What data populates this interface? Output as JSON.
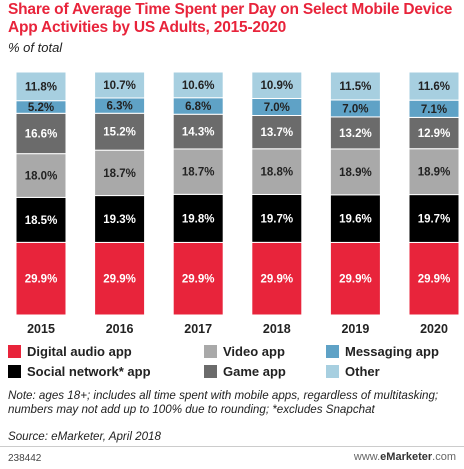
{
  "title": "Share of Average Time Spent per Day on Select Mobile Device App Activities by US Adults, 2015-2020",
  "subtitle": "% of total",
  "chart_data": {
    "type": "bar",
    "stacked": true,
    "categories": [
      "2015",
      "2016",
      "2017",
      "2018",
      "2019",
      "2020"
    ],
    "series": [
      {
        "name": "Digital audio app",
        "color": "#e8243b",
        "values": [
          29.9,
          29.9,
          29.9,
          29.9,
          29.9,
          29.9
        ]
      },
      {
        "name": "Social network* app",
        "color": "#000000",
        "values": [
          18.5,
          19.3,
          19.8,
          19.7,
          19.6,
          19.7
        ]
      },
      {
        "name": "Video app",
        "color": "#a9a9a9",
        "values": [
          18.0,
          18.7,
          18.7,
          18.8,
          18.9,
          18.9
        ]
      },
      {
        "name": "Game app",
        "color": "#6b6b6b",
        "values": [
          16.6,
          15.2,
          14.3,
          13.7,
          13.2,
          12.9
        ]
      },
      {
        "name": "Messaging app",
        "color": "#5fa2c6",
        "values": [
          5.2,
          6.3,
          6.8,
          7.0,
          7.0,
          7.1
        ]
      },
      {
        "name": "Other",
        "color": "#a7cfe0",
        "values": [
          11.8,
          10.7,
          10.6,
          10.9,
          11.5,
          11.6
        ]
      }
    ],
    "legend_placement": "bottom",
    "grid": false
  },
  "legend_items": [
    {
      "label": "Digital audio app",
      "color": "#e8243b"
    },
    {
      "label": "Video app",
      "color": "#a9a9a9"
    },
    {
      "label": "Messaging app",
      "color": "#5fa2c6"
    },
    {
      "label": "Social network* app",
      "color": "#000000"
    },
    {
      "label": "Game app",
      "color": "#6b6b6b"
    },
    {
      "label": "Other",
      "color": "#a7cfe0"
    }
  ],
  "note": "Note: ages 18+; includes all time spent with mobile apps, regardless of multitasking; numbers may not add up to 100% due to rounding; *excludes Snapchat",
  "source": "Source: eMarketer, April 2018",
  "footer_id": "238442",
  "footer_url_prefix": "www.",
  "footer_url_brand": "eMarketer",
  "footer_url_suffix": ".com"
}
